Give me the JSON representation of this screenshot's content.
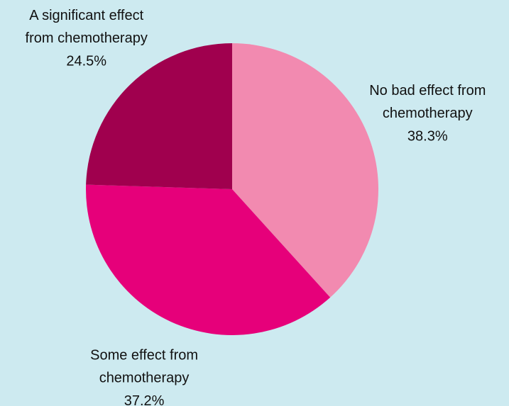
{
  "chart_data": {
    "type": "pie",
    "categories": [
      "No bad effect from chemotherapy",
      "Some effect from chemotherapy",
      "A significant effect from chemotherapy"
    ],
    "values": [
      38.3,
      37.2,
      24.5
    ],
    "value_labels": [
      "38.3%",
      "37.2%",
      "24.5%"
    ],
    "colors": [
      "#f28ab0",
      "#e6007a",
      "#a0004e"
    ]
  }
}
